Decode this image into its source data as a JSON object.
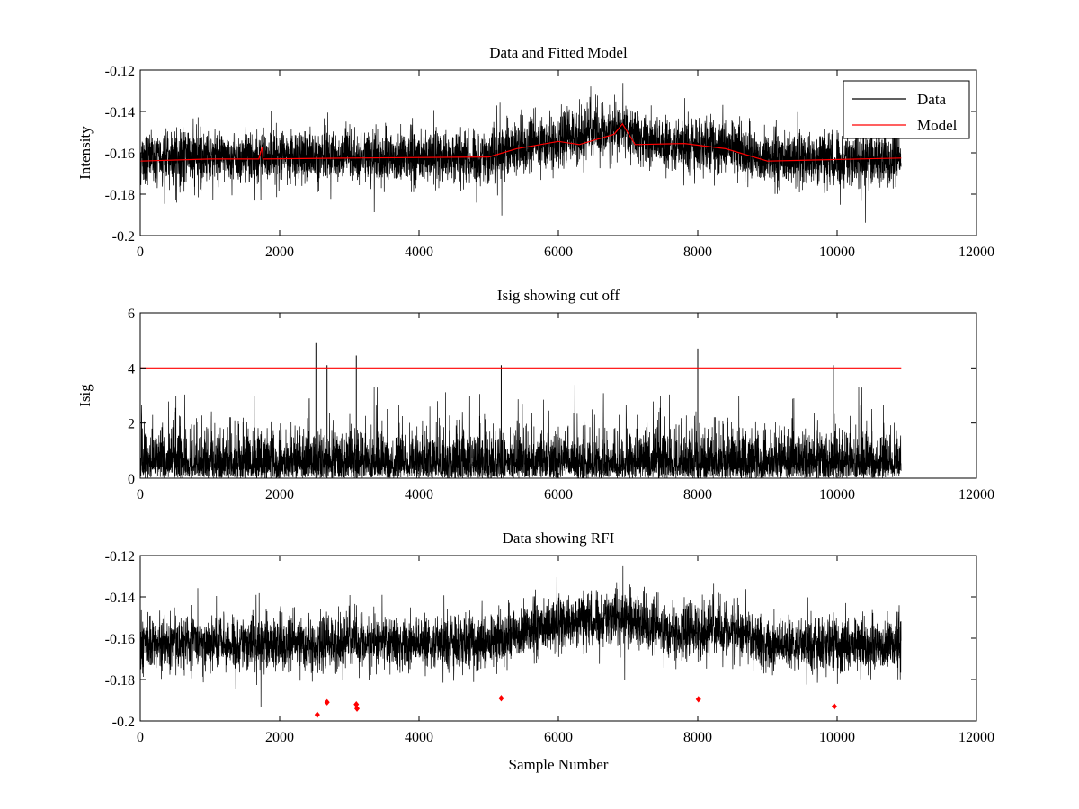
{
  "chart_data": [
    {
      "type": "line",
      "title": "Data and Fitted Model",
      "xlabel": "",
      "ylabel": "Intensity",
      "xlim": [
        0,
        12000
      ],
      "ylim": [
        -0.2,
        -0.12
      ],
      "y_reversed": true,
      "xticks": [
        0,
        2000,
        4000,
        6000,
        8000,
        10000,
        12000
      ],
      "yticks": [
        -0.12,
        -0.14,
        -0.16,
        -0.18,
        -0.2
      ],
      "ytick_labels": [
        "-0.12",
        "-0.14",
        "-0.16",
        "-0.18",
        "-0.2"
      ],
      "legend": {
        "placement": "top-right",
        "entries": [
          "Data",
          "Model"
        ]
      },
      "series": [
        {
          "name": "Data",
          "color": "#000000",
          "style": "noisy",
          "n_samples": 10920,
          "noise_std": 0.0085,
          "baseline": [
            [
              0,
              -0.1625
            ],
            [
              5000,
              -0.162
            ],
            [
              5300,
              -0.158
            ],
            [
              6000,
              -0.153
            ],
            [
              6900,
              -0.149
            ],
            [
              7500,
              -0.156
            ],
            [
              8500,
              -0.157
            ],
            [
              9000,
              -0.163
            ],
            [
              10920,
              -0.163
            ]
          ]
        },
        {
          "name": "Model",
          "color": "#ff0000",
          "style": "line",
          "values": [
            [
              0,
              -0.164
            ],
            [
              1000,
              -0.163
            ],
            [
              1700,
              -0.163
            ],
            [
              1750,
              -0.157
            ],
            [
              1760,
              -0.163
            ],
            [
              3000,
              -0.1625
            ],
            [
              5000,
              -0.162
            ],
            [
              5400,
              -0.158
            ],
            [
              6000,
              -0.1545
            ],
            [
              6300,
              -0.156
            ],
            [
              6800,
              -0.151
            ],
            [
              6920,
              -0.146
            ],
            [
              7100,
              -0.156
            ],
            [
              7800,
              -0.1555
            ],
            [
              8400,
              -0.158
            ],
            [
              9000,
              -0.164
            ],
            [
              10920,
              -0.1625
            ]
          ]
        }
      ]
    },
    {
      "type": "line",
      "title": "Isig showing cut off",
      "xlabel": "",
      "ylabel": "Isig",
      "xlim": [
        0,
        12000
      ],
      "ylim": [
        0,
        6
      ],
      "xticks": [
        0,
        2000,
        4000,
        6000,
        8000,
        10000,
        12000
      ],
      "yticks": [
        0,
        2,
        4,
        6
      ],
      "ytick_labels": [
        "0",
        "2",
        "4",
        "6"
      ],
      "series": [
        {
          "name": "Isig",
          "color": "#000000",
          "style": "abs-noise",
          "n_samples": 10920,
          "spikes": [
            [
              2520,
              4.9
            ],
            [
              2680,
              4.1
            ],
            [
              3100,
              4.45
            ],
            [
              5180,
              4.1
            ],
            [
              8000,
              4.7
            ],
            [
              9950,
              4.1
            ]
          ]
        },
        {
          "name": "cut off",
          "color": "#ff0000",
          "style": "line",
          "values": [
            [
              0,
              4
            ],
            [
              10920,
              4
            ]
          ]
        }
      ]
    },
    {
      "type": "line",
      "title": "Data showing RFI",
      "xlabel": "Sample Number",
      "ylabel": "",
      "xlim": [
        0,
        12000
      ],
      "ylim": [
        -0.2,
        -0.12
      ],
      "y_reversed": true,
      "xticks": [
        0,
        2000,
        4000,
        6000,
        8000,
        10000,
        12000
      ],
      "yticks": [
        -0.12,
        -0.14,
        -0.16,
        -0.18,
        -0.2
      ],
      "ytick_labels": [
        "-0.12",
        "-0.14",
        "-0.16",
        "-0.18",
        "-0.2"
      ],
      "series": [
        {
          "name": "Data",
          "color": "#000000",
          "style": "noisy",
          "n_samples": 10920,
          "noise_std": 0.0085,
          "baseline": [
            [
              0,
              -0.1625
            ],
            [
              5000,
              -0.162
            ],
            [
              5300,
              -0.158
            ],
            [
              6000,
              -0.153
            ],
            [
              6900,
              -0.149
            ],
            [
              7500,
              -0.156
            ],
            [
              8500,
              -0.157
            ],
            [
              9000,
              -0.163
            ],
            [
              10920,
              -0.163
            ]
          ]
        },
        {
          "name": "RFI",
          "color": "#ff0000",
          "style": "markers",
          "points": [
            [
              2540,
              -0.197
            ],
            [
              2680,
              -0.191
            ],
            [
              3100,
              -0.192
            ],
            [
              3110,
              -0.194
            ],
            [
              5180,
              -0.189
            ],
            [
              8010,
              -0.1895
            ],
            [
              9960,
              -0.193
            ]
          ]
        }
      ]
    }
  ]
}
